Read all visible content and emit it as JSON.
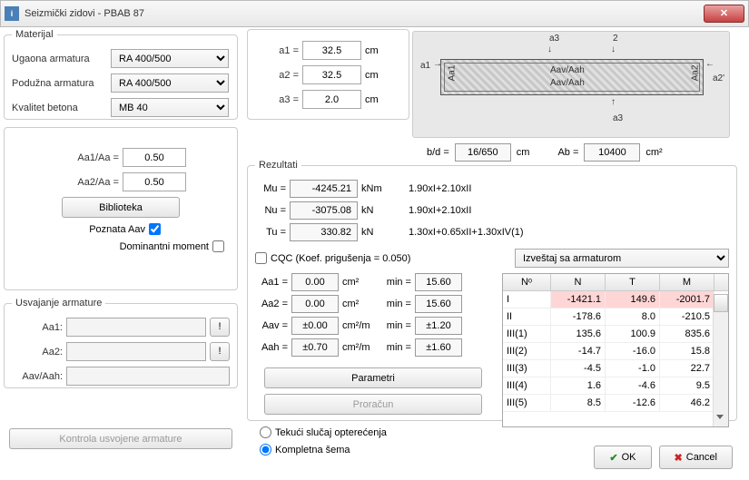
{
  "window": {
    "title": "Seizmički zidovi - PBAB 87"
  },
  "material": {
    "legend": "Materijal",
    "rows": [
      {
        "label": "Ugaona armatura",
        "value": "RA 400/500"
      },
      {
        "label": "Podužna armatura",
        "value": "RA 400/500"
      },
      {
        "label": "Kvalitet betona",
        "value": "MB 40"
      }
    ]
  },
  "geom": {
    "a1": {
      "label": "a1 =",
      "value": "32.5",
      "unit": "cm"
    },
    "a2": {
      "label": "a2 =",
      "value": "32.5",
      "unit": "cm"
    },
    "a3": {
      "label": "a3 =",
      "value": "2.0",
      "unit": "cm"
    }
  },
  "ratios": {
    "aa1": {
      "label": "Aa1/Aa =",
      "value": "0.50"
    },
    "aa2": {
      "label": "Aa2/Aa =",
      "value": "0.50"
    },
    "biblioteka": "Biblioteka",
    "poznata": "Poznata Aav",
    "dominant": "Dominantni moment"
  },
  "usvajanje": {
    "legend": "Usvajanje armature",
    "aa1": "Aa1:",
    "aa2": "Aa2:",
    "aav": "Aav/Aah:"
  },
  "kontrola": "Kontrola usvojene armature",
  "diagram": {
    "bd_label": "b/d =",
    "bd_value": "16/650",
    "bd_unit": "cm",
    "ab_label": "Ab =",
    "ab_value": "10400",
    "ab_unit": "cm²",
    "txt1": "Aav/Aah",
    "txt2": "Aav/Aah",
    "a1": "a1",
    "a2": "a2",
    "a2p": "a2'",
    "a3top": "a3",
    "a3bot": "a3",
    "twotop": "2",
    "Aa1": "Aa1",
    "Aa2": "Aa2"
  },
  "rezultati": {
    "legend": "Rezultati",
    "mu": {
      "label": "Mu =",
      "value": "-4245.21",
      "unit": "kNm",
      "lc": "1.90xI+2.10xII"
    },
    "nu": {
      "label": "Nu =",
      "value": "-3075.08",
      "unit": "kN",
      "lc": "1.90xI+2.10xII"
    },
    "tu": {
      "label": "Tu =",
      "value": "330.82",
      "unit": "kN",
      "lc": "1.30xI+0.65xII+1.30xIV(1)"
    },
    "cqc": "CQC (Koef. prigušenja = 0.050)",
    "izvestaj": "Izveštaj sa armaturom",
    "aa1": {
      "label": "Aa1 =",
      "value": "0.00",
      "unit": "cm²",
      "minlabel": "min =",
      "min": "15.60"
    },
    "aa2": {
      "label": "Aa2 =",
      "value": "0.00",
      "unit": "cm²",
      "minlabel": "min =",
      "min": "15.60"
    },
    "aav": {
      "label": "Aav =",
      "value": "±0.00",
      "unit": "cm²/m",
      "minlabel": "min =",
      "min": "±1.20"
    },
    "aah": {
      "label": "Aah =",
      "value": "±0.70",
      "unit": "cm²/m",
      "minlabel": "min =",
      "min": "±1.60"
    },
    "parametri": "Parametri",
    "proracun": "Proračun"
  },
  "table": {
    "cols": {
      "n0": "Nᵒ",
      "N": "N",
      "T": "T",
      "M": "M"
    },
    "rows": [
      {
        "n0": "I",
        "N": "-1421.1",
        "T": "149.6",
        "M": "-2001.7",
        "hl": true
      },
      {
        "n0": "II",
        "N": "-178.6",
        "T": "8.0",
        "M": "-210.5"
      },
      {
        "n0": "III(1)",
        "N": "135.6",
        "T": "100.9",
        "M": "835.6"
      },
      {
        "n0": "III(2)",
        "N": "-14.7",
        "T": "-16.0",
        "M": "15.8"
      },
      {
        "n0": "III(3)",
        "N": "-4.5",
        "T": "-1.0",
        "M": "22.7"
      },
      {
        "n0": "III(4)",
        "N": "1.6",
        "T": "-4.6",
        "M": "9.5"
      },
      {
        "n0": "III(5)",
        "N": "8.5",
        "T": "-12.6",
        "M": "46.2"
      }
    ]
  },
  "radio": {
    "tekuci": "Tekući slučaj opterećenja",
    "kompletna": "Kompletna šema"
  },
  "footer": {
    "ok": "OK",
    "cancel": "Cancel"
  },
  "colors": {
    "highlight": "#ffd6d6"
  }
}
